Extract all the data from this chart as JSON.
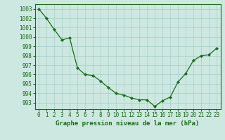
{
  "x": [
    0,
    1,
    2,
    3,
    4,
    5,
    6,
    7,
    8,
    9,
    10,
    11,
    12,
    13,
    14,
    15,
    16,
    17,
    18,
    19,
    20,
    21,
    22,
    23
  ],
  "y": [
    1003.0,
    1002.0,
    1000.8,
    999.7,
    999.9,
    996.7,
    996.0,
    995.9,
    995.3,
    994.6,
    994.0,
    993.8,
    993.5,
    993.3,
    993.3,
    992.6,
    993.2,
    993.6,
    995.2,
    996.1,
    997.5,
    998.0,
    998.1,
    998.8
  ],
  "line_color": "#1a6b1a",
  "marker_color": "#1a6b1a",
  "bg_color": "#cce8e0",
  "grid_color": "#a8cfc8",
  "xlabel": "Graphe pression niveau de la mer (hPa)",
  "xlabel_color": "#1a6b1a",
  "tick_color": "#1a6b1a",
  "spine_color": "#1a6b1a",
  "ylim_min": 992.3,
  "ylim_max": 1003.5,
  "yticks": [
    993,
    994,
    995,
    996,
    997,
    998,
    999,
    1000,
    1001,
    1002,
    1003
  ],
  "xticks": [
    0,
    1,
    2,
    3,
    4,
    5,
    6,
    7,
    8,
    9,
    10,
    11,
    12,
    13,
    14,
    15,
    16,
    17,
    18,
    19,
    20,
    21,
    22,
    23
  ],
  "tick_fontsize": 5.5,
  "xlabel_fontsize": 6.5
}
